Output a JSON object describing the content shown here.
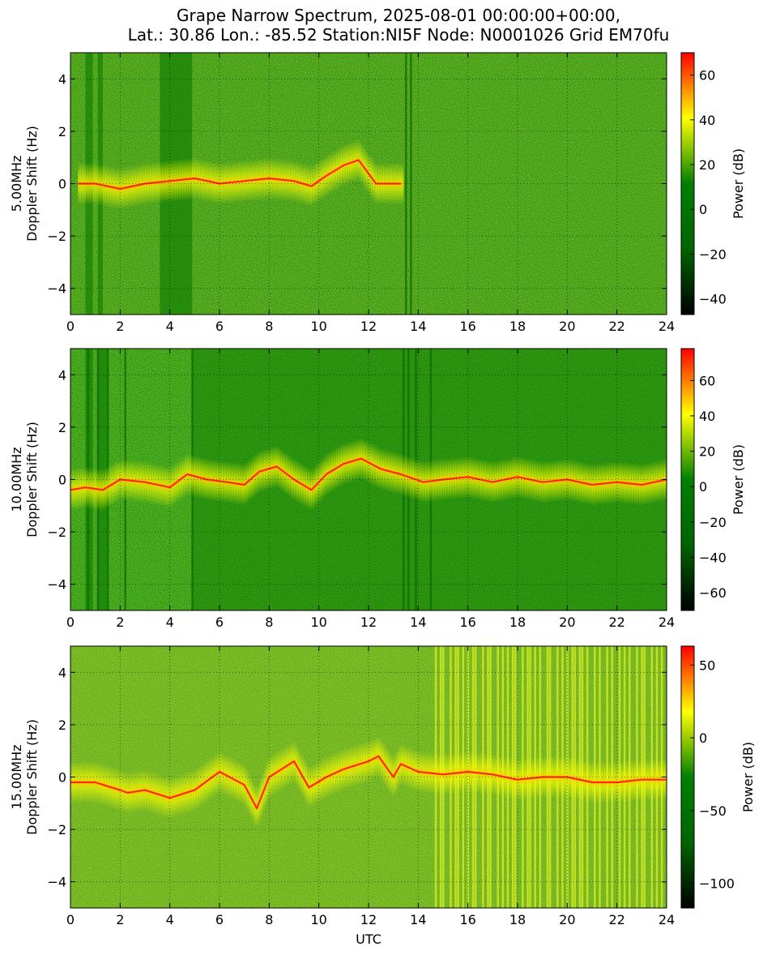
{
  "title_line1": "Grape Narrow Spectrum, 2025-08-01 00:00:00+00:00,",
  "title_line2": "Lat.: 30.86 Lon.: -85.52 Station:NI5F Node: N0001026 Grid EM70fu",
  "colors": {
    "colormap": [
      "#000000",
      "#006400",
      "#008000",
      "#ffff00",
      "#ff0000"
    ],
    "frame": "#000000",
    "grid": "#000000"
  },
  "chart_data": [
    {
      "type": "heatmap",
      "panel": "5.00MHz",
      "ylabel": "5.00MHz\nDoppler Shift (Hz)",
      "xlabel": "",
      "xlim": [
        0,
        24
      ],
      "ylim": [
        -5,
        5
      ],
      "xticks": [
        0,
        2,
        4,
        6,
        8,
        10,
        12,
        14,
        16,
        18,
        20,
        22,
        24
      ],
      "yticks": [
        -4,
        -2,
        0,
        2,
        4
      ],
      "grid": true,
      "colorbar": {
        "label": "Power (dB)",
        "range": [
          -47,
          70
        ],
        "ticks": [
          -40,
          -20,
          0,
          20,
          40,
          60
        ]
      },
      "signal_trace": [
        [
          0.3,
          0.0
        ],
        [
          1,
          0.0
        ],
        [
          2,
          -0.2
        ],
        [
          3,
          0.0
        ],
        [
          4,
          0.1
        ],
        [
          5,
          0.2
        ],
        [
          6,
          0.0
        ],
        [
          7,
          0.1
        ],
        [
          8,
          0.2
        ],
        [
          9,
          0.1
        ],
        [
          9.7,
          -0.1
        ],
        [
          10.3,
          0.3
        ],
        [
          11,
          0.7
        ],
        [
          11.6,
          0.9
        ],
        [
          12.3,
          0.0
        ],
        [
          13.3,
          0.0
        ]
      ],
      "signal_band": [
        0.3,
        13.3
      ],
      "dark_bands": [
        [
          0.6,
          0.9
        ],
        [
          1.1,
          1.3
        ],
        [
          3.6,
          4.9
        ]
      ],
      "vertical_lines": [
        13.5,
        13.7
      ]
    },
    {
      "type": "heatmap",
      "panel": "10.00MHz",
      "ylabel": "10.00MHz\nDoppler Shift (Hz)",
      "xlabel": "",
      "xlim": [
        0,
        24
      ],
      "ylim": [
        -5,
        5
      ],
      "xticks": [
        0,
        2,
        4,
        6,
        8,
        10,
        12,
        14,
        16,
        18,
        20,
        22,
        24
      ],
      "yticks": [
        -4,
        -2,
        0,
        2,
        4
      ],
      "grid": true,
      "colorbar": {
        "label": "Power (dB)",
        "range": [
          -70,
          78
        ],
        "ticks": [
          -60,
          -40,
          -20,
          0,
          20,
          40,
          60
        ]
      },
      "signal_trace": [
        [
          0,
          -0.4
        ],
        [
          0.6,
          -0.3
        ],
        [
          1.3,
          -0.4
        ],
        [
          2,
          0.0
        ],
        [
          3,
          -0.1
        ],
        [
          4,
          -0.3
        ],
        [
          4.7,
          0.2
        ],
        [
          5.5,
          0.0
        ],
        [
          6.3,
          -0.1
        ],
        [
          7,
          -0.2
        ],
        [
          7.6,
          0.3
        ],
        [
          8.3,
          0.5
        ],
        [
          9,
          0.0
        ],
        [
          9.7,
          -0.4
        ],
        [
          10.3,
          0.2
        ],
        [
          11,
          0.6
        ],
        [
          11.7,
          0.8
        ],
        [
          12.5,
          0.4
        ],
        [
          13.3,
          0.2
        ],
        [
          14.2,
          -0.1
        ],
        [
          15,
          0.0
        ],
        [
          16,
          0.1
        ],
        [
          17,
          -0.1
        ],
        [
          18,
          0.1
        ],
        [
          19,
          -0.1
        ],
        [
          20,
          0.0
        ],
        [
          21,
          -0.2
        ],
        [
          22,
          -0.1
        ],
        [
          23,
          -0.2
        ],
        [
          24,
          0.0
        ]
      ],
      "signal_band": [
        0,
        24
      ],
      "dark_bands": [
        [
          0.6,
          0.9
        ],
        [
          1.1,
          1.5
        ],
        [
          4.9,
          24
        ]
      ],
      "vertical_lines": [
        0.7,
        1.1,
        1.5,
        2.2,
        4.9,
        13.4,
        13.6,
        13.9,
        14.5
      ]
    },
    {
      "type": "heatmap",
      "panel": "15.00MHz",
      "ylabel": "15.00MHz\nDoppler Shift (Hz)",
      "xlabel": "UTC",
      "xlim": [
        0,
        24
      ],
      "ylim": [
        -5,
        5
      ],
      "xticks": [
        0,
        2,
        4,
        6,
        8,
        10,
        12,
        14,
        16,
        18,
        20,
        22,
        24
      ],
      "yticks": [
        -4,
        -2,
        0,
        2,
        4
      ],
      "grid": true,
      "colorbar": {
        "label": "Power (dB)",
        "range": [
          -117,
          63
        ],
        "ticks": [
          -100,
          -50,
          0,
          50
        ]
      },
      "signal_trace": [
        [
          0,
          -0.2
        ],
        [
          1,
          -0.2
        ],
        [
          2,
          -0.5
        ],
        [
          2.3,
          -0.6
        ],
        [
          3,
          -0.5
        ],
        [
          4,
          -0.8
        ],
        [
          5,
          -0.5
        ],
        [
          6,
          0.2
        ],
        [
          7,
          -0.3
        ],
        [
          7.5,
          -1.2
        ],
        [
          8,
          0.0
        ],
        [
          9,
          0.6
        ],
        [
          9.6,
          -0.4
        ],
        [
          10.3,
          0.0
        ],
        [
          11,
          0.3
        ],
        [
          12,
          0.6
        ],
        [
          12.4,
          0.8
        ],
        [
          13,
          0.0
        ],
        [
          13.3,
          0.5
        ],
        [
          14,
          0.2
        ],
        [
          15,
          0.1
        ],
        [
          16,
          0.2
        ],
        [
          17,
          0.1
        ],
        [
          18,
          -0.1
        ],
        [
          19,
          0.0
        ],
        [
          20,
          0.0
        ],
        [
          21,
          -0.2
        ],
        [
          22,
          -0.2
        ],
        [
          23,
          -0.1
        ],
        [
          24,
          -0.1
        ]
      ],
      "signal_band": [
        0,
        24
      ],
      "dark_bands": [],
      "vertical_lines": [
        14.7,
        14.9,
        15.0,
        15.3,
        15.5,
        15.6,
        15.8,
        16.0,
        16.2,
        16.3,
        16.6,
        16.8,
        16.9,
        17.2,
        17.4,
        17.6,
        17.8,
        17.9,
        18.2,
        18.4,
        18.5,
        18.7,
        18.9,
        19.2,
        19.3,
        19.6,
        19.8,
        20.0,
        20.2,
        20.3,
        20.5,
        20.6,
        20.8,
        21.1,
        21.3,
        21.6,
        21.8,
        22.1,
        22.3,
        22.5,
        22.8,
        23.0,
        23.1,
        23.4,
        23.6,
        23.8
      ]
    }
  ]
}
